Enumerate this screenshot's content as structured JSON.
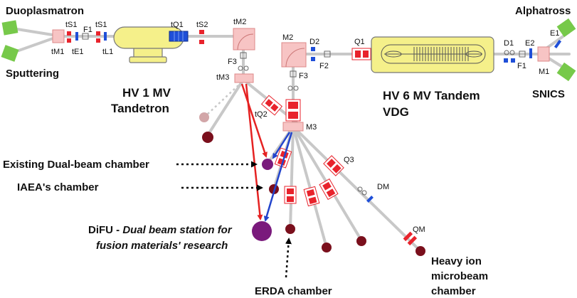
{
  "labels": {
    "duoplasmatron": "Duoplasmatron",
    "sputtering": "Sputtering",
    "alphatross": "Alphatross",
    "snics": "SNICS",
    "hv1_line1": "HV 1 MV",
    "hv1_line2": "Tandetron",
    "hv6_line1": "HV 6 MV Tandem",
    "hv6_line2": "VDG",
    "existing_chamber": "Existing Dual-beam chamber",
    "iaea_chamber": "IAEA's chamber",
    "difu_prefix": "DiFU - ",
    "difu_italic1": "Dual beam station for",
    "difu_italic2": "fusion materials' research",
    "erda_chamber": "ERDA chamber",
    "heavy_ion_1": "Heavy ion",
    "heavy_ion_2": "microbeam",
    "heavy_ion_3": "chamber"
  },
  "components": {
    "tS1a": "tS1",
    "tS1b": "tS1",
    "tM1": "tM1",
    "tE1": "tE1",
    "tL1": "tL1",
    "F1a": "F1",
    "tQ1": "tQ1",
    "tS2": "tS2",
    "tM2": "tM2",
    "F3a": "F3",
    "tM3": "tM3",
    "tQ2": "tQ2",
    "M2": "M2",
    "D2": "D2",
    "F2": "F2",
    "Q1": "Q1",
    "F3b": "F3",
    "M3": "M3",
    "D1": "D1",
    "E2": "E2",
    "E1": "E1",
    "F1b": "F1",
    "M1": "M1",
    "Q3": "Q3",
    "DM": "DM",
    "QM": "QM"
  },
  "colors": {
    "source_green": "#77c94a",
    "hv_yellow": "#f5f08a",
    "magnet_pink": "#f7c4c4",
    "quad_red": "#e8232c",
    "steer_blue": "#1f4fd8",
    "chamber_dark": "#7a0f1c",
    "chamber_purple": "#7a1a7c",
    "beam_red": "#e52222",
    "beam_blue": "#2244cc",
    "line_grey": "#c8c8c8"
  }
}
